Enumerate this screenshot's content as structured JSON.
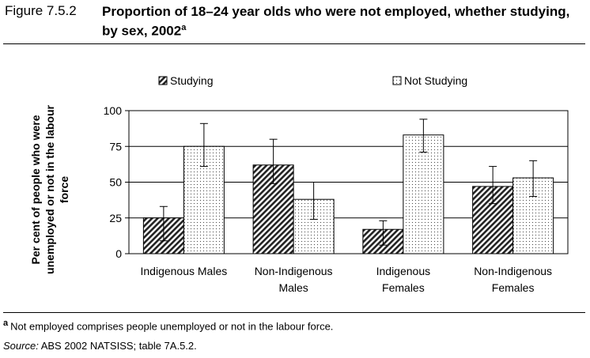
{
  "figure": {
    "label": "Figure 7.5.2",
    "title": "Proportion of 18–24 year olds who were not employed, whether studying, by sex, 2002",
    "title_superscript": "a"
  },
  "footnote": {
    "marker": "a",
    "text": "Not employed comprises people unemployed or not in the labour force."
  },
  "source": {
    "label": "Source:",
    "text": "ABS 2002 NATSISS; table 7A.5.2."
  },
  "chart_data": {
    "type": "bar",
    "categories": [
      [
        "Indigenous Males"
      ],
      [
        "Non-Indigenous",
        "Males"
      ],
      [
        "Indigenous",
        "Females"
      ],
      [
        "Non-Indigenous",
        "Females"
      ]
    ],
    "series": [
      {
        "name": "Studying",
        "pattern": "diagonal-hatch",
        "values": [
          25,
          62,
          17,
          47
        ],
        "error_low": [
          9,
          49,
          6,
          35
        ],
        "error_high": [
          33,
          80,
          23,
          61
        ]
      },
      {
        "name": "Not Studying",
        "pattern": "dotted",
        "values": [
          75,
          38,
          83,
          53
        ],
        "error_low": [
          61,
          24,
          71,
          40
        ],
        "error_high": [
          91,
          50,
          94,
          65
        ]
      }
    ],
    "ylabel": [
      "Per cent of people who were",
      "unemployed or not in the labour",
      "force"
    ],
    "ylim": [
      0,
      100
    ],
    "yticks": [
      0,
      25,
      50,
      75,
      100
    ],
    "grid": true,
    "legend_position": "top"
  }
}
